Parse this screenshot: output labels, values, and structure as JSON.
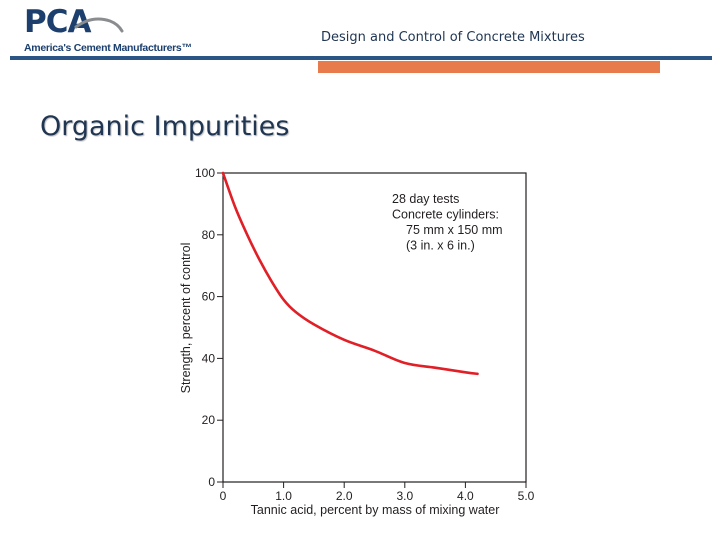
{
  "header": {
    "logo_text": "PCA",
    "logo_tagline": "America's Cement Manufacturers™",
    "deck_title": "Design and Control of Concrete Mixtures"
  },
  "slide": {
    "title": "Organic Impurities"
  },
  "colors": {
    "brand_blue": "#1c3f6e",
    "rule_blue": "#2a5584",
    "accent_orange": "#e87b4c",
    "curve_red": "#e01f26"
  },
  "chart_data": {
    "type": "line",
    "xlabel": "Tannic acid, percent by mass of mixing water",
    "ylabel": "Strength, percent of control",
    "xlim": [
      0,
      5.0
    ],
    "ylim": [
      0,
      100
    ],
    "xticks": [
      "0",
      "1.0",
      "2.0",
      "3.0",
      "4.0",
      "5.0"
    ],
    "yticks": [
      "0",
      "20",
      "40",
      "60",
      "80",
      "100"
    ],
    "grid": false,
    "annotation": [
      "28 day tests",
      "Concrete cylinders:",
      "75 mm x 150 mm",
      "(3 in. x 6 in.)"
    ],
    "series": [
      {
        "x": [
          0,
          0.2,
          0.4,
          0.6,
          0.8,
          1.0,
          1.2,
          1.5,
          2.0,
          2.5,
          3.0,
          3.5,
          4.0,
          4.2
        ],
        "y": [
          100,
          89,
          80,
          72,
          65,
          59,
          55,
          51,
          46,
          42.5,
          38.5,
          37,
          35.5,
          35
        ]
      }
    ]
  }
}
